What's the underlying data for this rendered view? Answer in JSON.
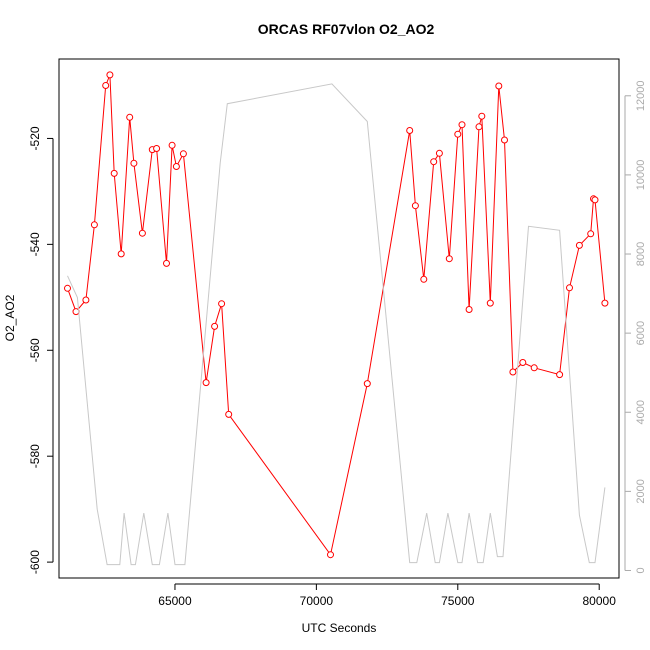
{
  "chart_data": {
    "type": "line",
    "title": "ORCAS RF07vlon O2_AO2",
    "xlabel": "UTC Seconds",
    "ylabel": "O2_AO2",
    "xlim": [
      60900,
      80700
    ],
    "ylim": [
      -603,
      -505
    ],
    "y2lim": [
      -190,
      12930
    ],
    "x_ticks": [
      65000,
      70000,
      75000,
      80000
    ],
    "y_ticks": [
      -600,
      -580,
      -560,
      -540,
      -520
    ],
    "y2_ticks": [
      0,
      2000,
      4000,
      6000,
      8000,
      10000,
      12000
    ],
    "grid": false,
    "series": [
      {
        "color": "#ff0000",
        "axis": "left",
        "marker": "circle",
        "points": [
          [
            61200,
            -548.3
          ],
          [
            61500,
            -552.7
          ],
          [
            61850,
            -550.5
          ],
          [
            62150,
            -536.3
          ],
          [
            62550,
            -510.0
          ],
          [
            62700,
            -508.0
          ],
          [
            62850,
            -526.6
          ],
          [
            63100,
            -541.8
          ],
          [
            63400,
            -516.0
          ],
          [
            63550,
            -524.7
          ],
          [
            63850,
            -537.9
          ],
          [
            64200,
            -522.1
          ],
          [
            64350,
            -521.9
          ],
          [
            64700,
            -543.6
          ],
          [
            64900,
            -521.3
          ],
          [
            65050,
            -525.3
          ],
          [
            65300,
            -522.9
          ],
          [
            66100,
            -566.1
          ],
          [
            66400,
            -555.5
          ],
          [
            66650,
            -551.2
          ],
          [
            66900,
            -572.1
          ],
          [
            70500,
            -598.6
          ],
          [
            71800,
            -566.3
          ],
          [
            73300,
            -518.5
          ],
          [
            73500,
            -532.7
          ],
          [
            73800,
            -546.6
          ],
          [
            74150,
            -524.4
          ],
          [
            74350,
            -522.8
          ],
          [
            74700,
            -542.7
          ],
          [
            75000,
            -519.2
          ],
          [
            75150,
            -517.4
          ],
          [
            75400,
            -552.3
          ],
          [
            75750,
            -517.8
          ],
          [
            75850,
            -515.8
          ],
          [
            76150,
            -551.1
          ],
          [
            76450,
            -510.1
          ],
          [
            76650,
            -520.3
          ],
          [
            76950,
            -564.1
          ],
          [
            77300,
            -562.3
          ],
          [
            77700,
            -563.3
          ],
          [
            78600,
            -564.6
          ],
          [
            78950,
            -548.2
          ],
          [
            79300,
            -540.2
          ],
          [
            79700,
            -538.0
          ],
          [
            79800,
            -531.4
          ],
          [
            79850,
            -531.6
          ],
          [
            80200,
            -551.1
          ]
        ]
      },
      {
        "color": "#c8c8c8",
        "axis": "right",
        "marker": "none",
        "points": [
          [
            61200,
            7450
          ],
          [
            61550,
            6900
          ],
          [
            62250,
            1550
          ],
          [
            62600,
            150
          ],
          [
            63050,
            150
          ],
          [
            63200,
            1450
          ],
          [
            63450,
            150
          ],
          [
            63600,
            150
          ],
          [
            63900,
            1450
          ],
          [
            64200,
            150
          ],
          [
            64450,
            150
          ],
          [
            64750,
            1450
          ],
          [
            65000,
            150
          ],
          [
            65350,
            150
          ],
          [
            66600,
            10300
          ],
          [
            66850,
            11800
          ],
          [
            70550,
            12300
          ],
          [
            71800,
            11350
          ],
          [
            73300,
            200
          ],
          [
            73550,
            200
          ],
          [
            73900,
            1450
          ],
          [
            74200,
            200
          ],
          [
            74350,
            200
          ],
          [
            74650,
            1450
          ],
          [
            75000,
            200
          ],
          [
            75150,
            200
          ],
          [
            75400,
            1450
          ],
          [
            75700,
            200
          ],
          [
            75900,
            200
          ],
          [
            76150,
            1450
          ],
          [
            76400,
            350
          ],
          [
            76600,
            350
          ],
          [
            77500,
            8700
          ],
          [
            78600,
            8600
          ],
          [
            79300,
            1400
          ],
          [
            79650,
            200
          ],
          [
            79850,
            200
          ],
          [
            80200,
            2100
          ]
        ]
      }
    ]
  }
}
